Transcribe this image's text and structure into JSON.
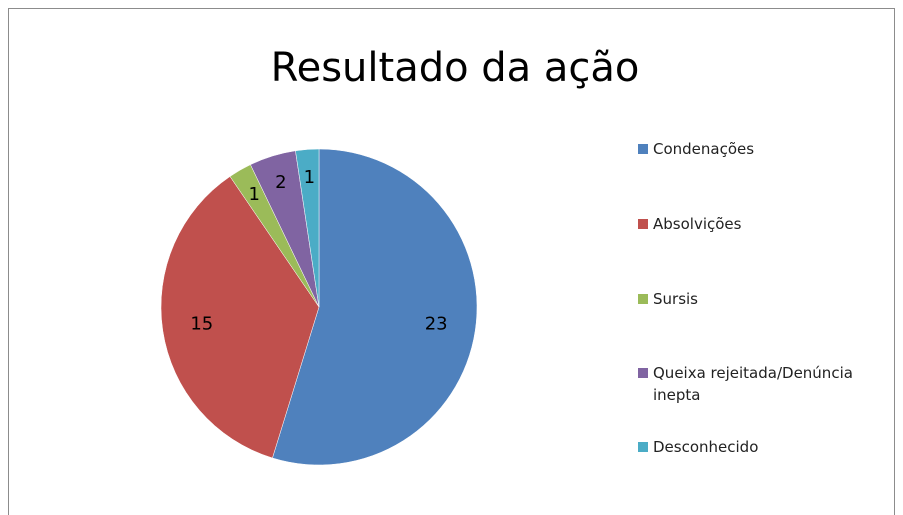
{
  "chart_data": {
    "type": "pie",
    "title": "Resultado da ação",
    "categories": [
      "Condenações",
      "Absolvições",
      "Sursis",
      "Queixa rejeitada/Denúncia inepta",
      "Desconhecido"
    ],
    "values": [
      23,
      15,
      1,
      2,
      1
    ],
    "colors": [
      "#4f81bd",
      "#c0504d",
      "#9bbb59",
      "#8064a2",
      "#4bacc6"
    ],
    "legend": "right"
  }
}
